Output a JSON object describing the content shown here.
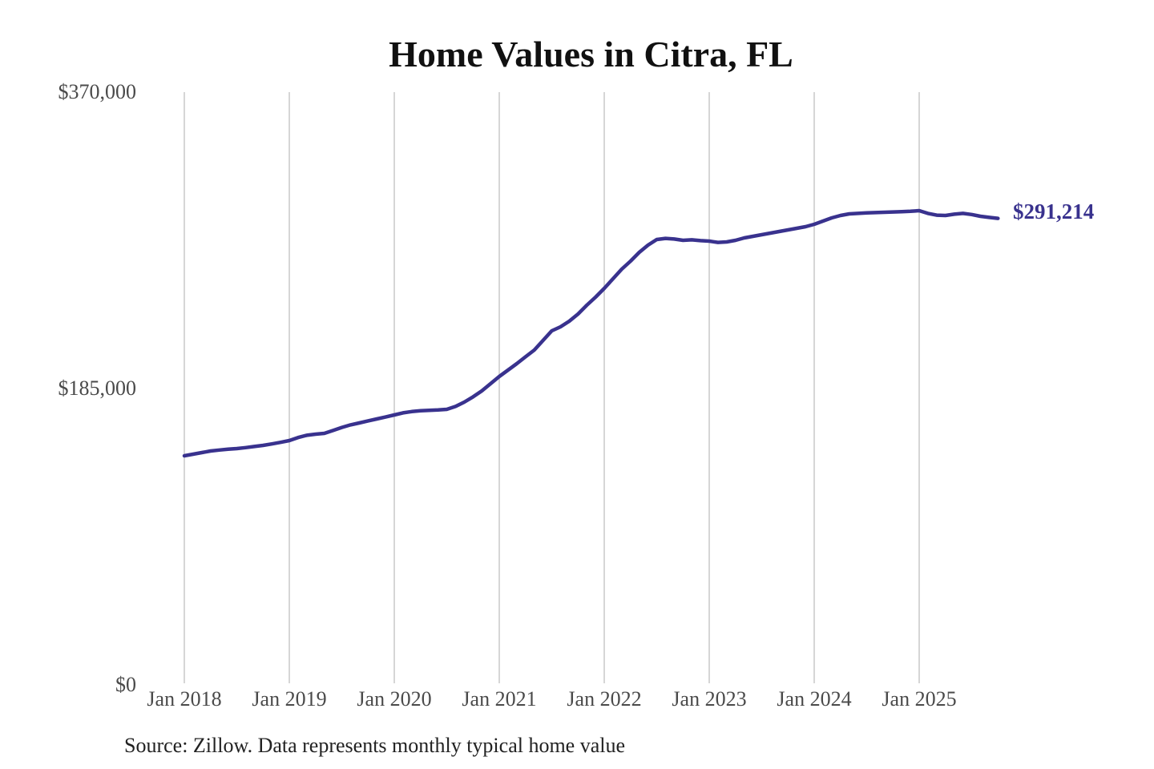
{
  "chart": {
    "title": "Home Values in Citra, FL",
    "y_axis": [
      "$370,000",
      "$185,000",
      "$0"
    ],
    "latest_value_label": "$291,214",
    "source": "Source: Zillow. Data represents monthly typical home value"
  },
  "chart_data": {
    "type": "line",
    "title": "Home Values in Citra, FL",
    "series_name": "Monthly typical home value",
    "unit": "USD",
    "x_start": "2018-01",
    "x_end": "2025-10",
    "x_frequency": "monthly",
    "xticks": [
      "Jan 2018",
      "Jan 2019",
      "Jan 2020",
      "Jan 2021",
      "Jan 2022",
      "Jan 2023",
      "Jan 2024",
      "Jan 2025"
    ],
    "yticks": [
      0,
      185000,
      370000
    ],
    "ytick_labels": [
      "$0",
      "$185,000",
      "$370,000"
    ],
    "ylim": [
      0,
      370000
    ],
    "grid": "vertical-only",
    "legend": "none",
    "line_color": "#39328e",
    "grid_color": "#c9c9c9",
    "axis_text_color": "#4a4a4a",
    "latest_value": 291214,
    "latest_value_label": "$291,214",
    "values": [
      143000,
      144000,
      145000,
      146000,
      146600,
      147100,
      147500,
      148100,
      148800,
      149500,
      150400,
      151400,
      152500,
      154400,
      155800,
      156500,
      157000,
      158800,
      160700,
      162300,
      163500,
      164800,
      166000,
      167200,
      168500,
      169800,
      170600,
      171100,
      171400,
      171600,
      172000,
      173800,
      176500,
      179800,
      183500,
      188000,
      192500,
      196500,
      200500,
      204800,
      209000,
      215000,
      221000,
      223500,
      227000,
      231500,
      237000,
      242000,
      247500,
      253500,
      259500,
      264500,
      270000,
      274500,
      278000,
      278700,
      278300,
      277500,
      277800,
      277300,
      277000,
      276200,
      276500,
      277500,
      279000,
      280000,
      281000,
      282000,
      283000,
      284000,
      285000,
      286000,
      287500,
      289500,
      291500,
      293000,
      294000,
      294300,
      294600,
      294800,
      295000,
      295200,
      295400,
      295600,
      296000,
      294300,
      293200,
      293000,
      293800,
      294300,
      293600,
      292500,
      291800,
      291214
    ]
  }
}
